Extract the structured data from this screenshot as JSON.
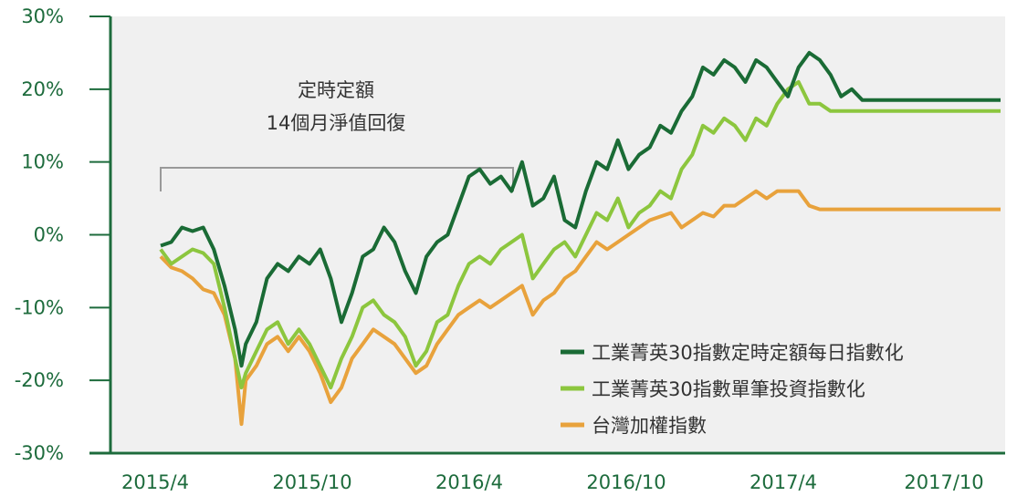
{
  "chart_data": {
    "type": "line",
    "title": "",
    "xlabel": "",
    "ylabel": "",
    "ylim": [
      -30,
      30
    ],
    "yticks": [
      "30%",
      "20%",
      "10%",
      "0%",
      "-10%",
      "-20%",
      "-30%"
    ],
    "xticks": [
      "2015/4",
      "2015/10",
      "2016/4",
      "2016/10",
      "2017/4",
      "2017/10"
    ],
    "grid": false,
    "legend_position": "bottom-right",
    "annotation": {
      "lines": [
        "定時定額",
        "14個月淨值回復"
      ],
      "span_start": "2015/4",
      "span_end": "2016/6"
    },
    "x": [
      0,
      0.5,
      1,
      1.5,
      2,
      2.5,
      3,
      3.5,
      3.8,
      4,
      4.5,
      5,
      5.5,
      6,
      6.5,
      7,
      7.5,
      8,
      8.5,
      9,
      9.5,
      10,
      10.5,
      11,
      11.5,
      12,
      12.5,
      13,
      13.5,
      14,
      14.5,
      15,
      15.5,
      16,
      16.5,
      17,
      17.5,
      18,
      18.5,
      19,
      19.5,
      20,
      20.5,
      21,
      21.5,
      22,
      22.5,
      23,
      23.5,
      24,
      24.5,
      25,
      25.5,
      26,
      26.5,
      27,
      27.5,
      28,
      28.5,
      29,
      29.5,
      30,
      30.5,
      31,
      31.5,
      32,
      32.5,
      33,
      33.5,
      34,
      34.5,
      35,
      35.5,
      36,
      36.5,
      37,
      37.5,
      38,
      38.5,
      39,
      39.5
    ],
    "series": [
      {
        "name": "工業菁英30指數定時定額每日指數化",
        "color": "#1a6b35",
        "values": [
          -1.5,
          -1,
          1,
          0.5,
          1,
          -2,
          -7,
          -13,
          -18,
          -15,
          -12,
          -6,
          -4,
          -5,
          -3,
          -4,
          -2,
          -6,
          -12,
          -8,
          -3,
          -2,
          1,
          -1,
          -5,
          -8,
          -3,
          -1,
          0,
          4,
          8,
          9,
          7,
          8,
          6,
          10,
          4,
          5,
          8,
          2,
          1,
          6,
          10,
          9,
          13,
          9,
          11,
          12,
          15,
          14,
          17,
          19,
          23,
          22,
          24,
          23,
          21,
          24,
          23,
          21,
          19,
          23,
          25,
          24,
          22,
          19,
          20,
          18.5,
          18.5,
          18.5,
          18.5,
          18.5,
          18.5,
          18.5,
          18.5,
          18.5,
          18.5,
          18.5,
          18.5,
          18.5,
          18.5
        ]
      },
      {
        "name": "工業菁英30指數單筆投資指數化",
        "color": "#8cc63e",
        "values": [
          -2,
          -4,
          -3,
          -2,
          -2.5,
          -4,
          -10,
          -17,
          -21,
          -19,
          -16,
          -13,
          -12,
          -15,
          -13,
          -15,
          -18,
          -21,
          -17,
          -14,
          -10,
          -9,
          -11,
          -12,
          -14,
          -18,
          -16,
          -12,
          -11,
          -7,
          -4,
          -3,
          -4,
          -2,
          -1,
          0,
          -6,
          -4,
          -2,
          -1,
          -3,
          0,
          3,
          2,
          5,
          1,
          3,
          4,
          6,
          5,
          9,
          11,
          15,
          14,
          16,
          15,
          13,
          16,
          15,
          18,
          20,
          21,
          18,
          18,
          17,
          17,
          17,
          17,
          17,
          17,
          17,
          17,
          17,
          17,
          17,
          17,
          17,
          17,
          17,
          17,
          17
        ]
      },
      {
        "name": "台灣加權指數",
        "color": "#e8a23c",
        "values": [
          -3,
          -4.5,
          -5,
          -6,
          -7.5,
          -8,
          -11,
          -17,
          -26,
          -20,
          -18,
          -15,
          -14,
          -16,
          -14,
          -16,
          -19,
          -23,
          -21,
          -17,
          -15,
          -13,
          -14,
          -15,
          -17,
          -19,
          -18,
          -15,
          -13,
          -11,
          -10,
          -9,
          -10,
          -9,
          -8,
          -7,
          -11,
          -9,
          -8,
          -6,
          -5,
          -3,
          -1,
          -2,
          -1,
          0,
          1,
          2,
          2.5,
          3,
          1,
          2,
          3,
          2.5,
          4,
          4,
          5,
          6,
          5,
          6,
          6,
          6,
          4,
          3.5,
          3.5,
          3.5,
          3.5,
          3.5,
          3.5,
          3.5,
          3.5,
          3.5,
          3.5,
          3.5,
          3.5,
          3.5,
          3.5,
          3.5,
          3.5,
          3.5,
          3.5
        ]
      }
    ]
  }
}
